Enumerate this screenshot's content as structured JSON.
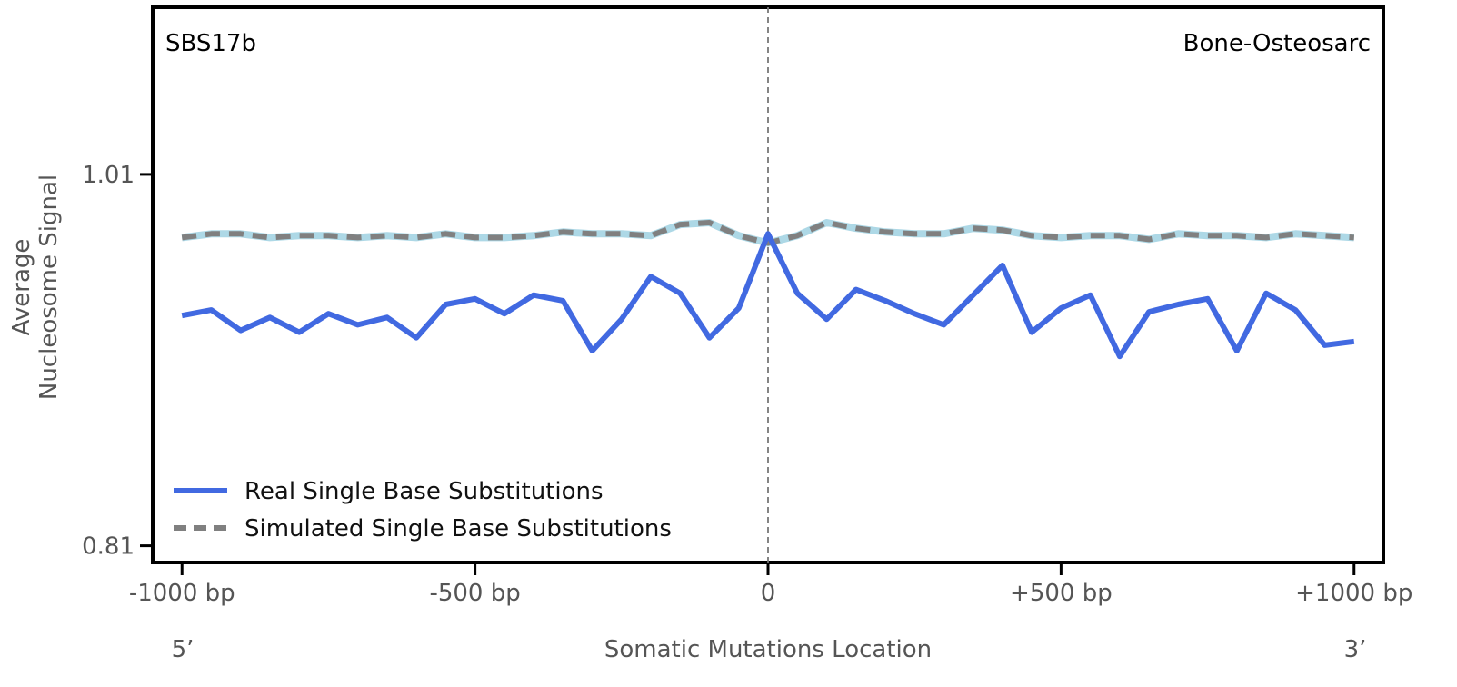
{
  "chart_data": {
    "type": "line",
    "signature_label": "SBS17b",
    "cancer_type_label": "Bone-Osteosarc",
    "ylabel_line1": "Average",
    "ylabel_line2": "Nucleosome Signal",
    "xlabel": "Somatic Mutations Location",
    "five_prime_label": "5’",
    "three_prime_label": "3’",
    "xlim": [
      -1050,
      1050
    ],
    "ylim": [
      0.801,
      1.1
    ],
    "x_ticks": [
      -1000,
      -500,
      0,
      500,
      1000
    ],
    "x_tick_labels": [
      "-1000 bp",
      "-500 bp",
      "0",
      "+500 bp",
      "+1000 bp"
    ],
    "y_ticks": [
      0.81,
      1.01
    ],
    "y_tick_labels": [
      "0.81",
      "1.01"
    ],
    "center_line_x": 0,
    "legend_position": "lower-left",
    "x": [
      -1000,
      -950,
      -900,
      -850,
      -800,
      -750,
      -700,
      -650,
      -600,
      -550,
      -500,
      -450,
      -400,
      -350,
      -300,
      -250,
      -200,
      -150,
      -100,
      -50,
      0,
      50,
      100,
      150,
      200,
      250,
      300,
      350,
      400,
      450,
      500,
      550,
      600,
      650,
      700,
      750,
      800,
      850,
      900,
      950,
      1000
    ],
    "series": [
      {
        "name": "Real Single Base Substitutions",
        "color": "#4169e1",
        "style": "solid",
        "values": [
          0.934,
          0.937,
          0.926,
          0.933,
          0.925,
          0.935,
          0.929,
          0.933,
          0.922,
          0.94,
          0.943,
          0.935,
          0.945,
          0.942,
          0.915,
          0.932,
          0.955,
          0.946,
          0.922,
          0.938,
          0.978,
          0.946,
          0.932,
          0.948,
          0.942,
          0.935,
          0.929,
          0.945,
          0.961,
          0.925,
          0.938,
          0.945,
          0.912,
          0.936,
          0.94,
          0.943,
          0.915,
          0.946,
          0.937,
          0.918,
          0.92
        ]
      },
      {
        "name": "Simulated Single Base Substitutions",
        "color": "#808080",
        "overlay_color": "#add8e6",
        "style": "dashed",
        "values": [
          0.976,
          0.978,
          0.978,
          0.976,
          0.977,
          0.977,
          0.976,
          0.977,
          0.976,
          0.978,
          0.976,
          0.976,
          0.977,
          0.979,
          0.978,
          0.978,
          0.977,
          0.983,
          0.984,
          0.977,
          0.973,
          0.977,
          0.984,
          0.981,
          0.979,
          0.978,
          0.978,
          0.981,
          0.98,
          0.977,
          0.976,
          0.977,
          0.977,
          0.975,
          0.978,
          0.977,
          0.977,
          0.976,
          0.978,
          0.977,
          0.976
        ]
      }
    ]
  }
}
